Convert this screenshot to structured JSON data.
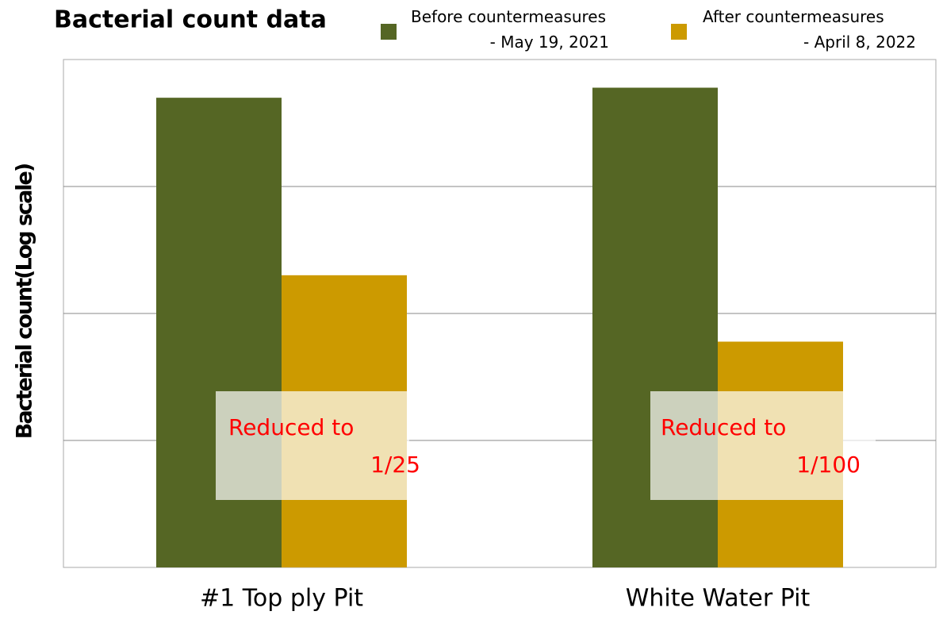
{
  "chart_data": {
    "type": "bar",
    "title": "Bacterial count data",
    "y_label": "Bacterial count(Log scale)",
    "categories": [
      "#1 Top ply Pit",
      "White Water Pit"
    ],
    "series": [
      {
        "name": "Before countermeasures\n- May 19, 2021",
        "color": "#556624",
        "values": [
          5000,
          6000
        ]
      },
      {
        "name": "After countermeasures\n- April 8, 2022",
        "color": "#cc9a00",
        "values": [
          200,
          60
        ]
      }
    ],
    "log_scale": true,
    "ylim": [
      1,
      10000
    ],
    "yticks": [
      10,
      100,
      1000
    ],
    "grid": true,
    "annotations": [
      "Reduced to\n1/25",
      "Reduced to\n1/100"
    ]
  }
}
